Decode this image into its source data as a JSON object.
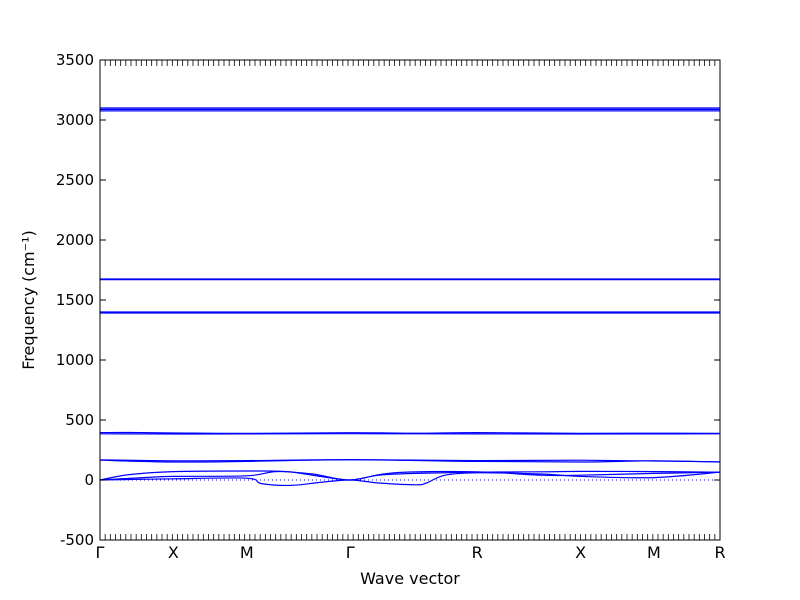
{
  "chart_data": {
    "type": "line",
    "title": "",
    "xlabel": "Wave vector",
    "ylabel": "Frequency (cm⁻¹)",
    "ylim": [
      -500,
      3500
    ],
    "yticks": [
      -500,
      0,
      500,
      1000,
      1500,
      2000,
      2500,
      3000,
      3500
    ],
    "xlim": [
      0,
      8.45
    ],
    "x_ticks": [
      {
        "label": "Γ",
        "x": 0
      },
      {
        "label": "X",
        "x": 1
      },
      {
        "label": "M",
        "x": 2
      },
      {
        "label": "Γ",
        "x": 3.41
      },
      {
        "label": "R",
        "x": 5.14
      },
      {
        "label": "X",
        "x": 6.55
      },
      {
        "label": "M",
        "x": 7.55
      },
      {
        "label": "R",
        "x": 8.45
      }
    ],
    "zero_line": "dotted",
    "line_color": "#0000ff",
    "series": [
      {
        "values": [
          [
            0,
            3100
          ],
          [
            8.45,
            3100
          ]
        ]
      },
      {
        "values": [
          [
            0,
            3088
          ],
          [
            8.45,
            3088
          ]
        ]
      },
      {
        "values": [
          [
            0,
            3076
          ],
          [
            8.45,
            3076
          ]
        ]
      },
      {
        "values": [
          [
            0,
            1675
          ],
          [
            8.45,
            1675
          ]
        ]
      },
      {
        "values": [
          [
            0,
            1670
          ],
          [
            8.45,
            1670
          ]
        ]
      },
      {
        "values": [
          [
            0,
            1400
          ],
          [
            8.45,
            1400
          ]
        ]
      },
      {
        "values": [
          [
            0,
            1392
          ],
          [
            8.45,
            1392
          ]
        ]
      },
      {
        "values": [
          [
            0,
            395
          ],
          [
            0.4,
            396
          ],
          [
            1.0,
            392
          ],
          [
            2.0,
            388
          ],
          [
            3.41,
            394
          ],
          [
            4.3,
            390
          ],
          [
            5.14,
            395
          ],
          [
            6.55,
            388
          ],
          [
            7.55,
            390
          ],
          [
            8.45,
            388
          ]
        ]
      },
      {
        "values": [
          [
            0,
            385
          ],
          [
            1.0,
            383
          ],
          [
            2.0,
            384
          ],
          [
            3.41,
            386
          ],
          [
            5.14,
            384
          ],
          [
            6.55,
            383
          ],
          [
            7.55,
            384
          ],
          [
            8.45,
            385
          ]
        ]
      },
      {
        "values": [
          [
            0,
            168
          ],
          [
            1.0,
            160
          ],
          [
            2.0,
            162
          ],
          [
            3.41,
            170
          ],
          [
            5.14,
            162
          ],
          [
            6.55,
            165
          ],
          [
            7.55,
            158
          ],
          [
            8.45,
            152
          ]
        ]
      },
      {
        "values": [
          [
            0,
            165
          ],
          [
            1.0,
            150
          ],
          [
            2.0,
            155
          ],
          [
            3.41,
            168
          ],
          [
            5.14,
            155
          ],
          [
            6.55,
            150
          ],
          [
            7.55,
            160
          ],
          [
            8.45,
            150
          ]
        ]
      },
      {
        "values": [
          [
            0,
            0
          ],
          [
            0.4,
            45
          ],
          [
            1.0,
            70
          ],
          [
            2.0,
            75
          ],
          [
            2.55,
            70
          ],
          [
            3.0,
            30
          ],
          [
            3.41,
            0
          ],
          [
            3.8,
            40
          ],
          [
            4.3,
            55
          ],
          [
            5.14,
            65
          ],
          [
            6.0,
            68
          ],
          [
            6.55,
            72
          ],
          [
            7.55,
            70
          ],
          [
            8.45,
            65
          ]
        ]
      },
      {
        "values": [
          [
            0,
            0
          ],
          [
            0.6,
            20
          ],
          [
            1.0,
            30
          ],
          [
            2.0,
            35
          ],
          [
            2.4,
            70
          ],
          [
            2.9,
            50
          ],
          [
            3.41,
            0
          ],
          [
            4.0,
            60
          ],
          [
            5.14,
            68
          ],
          [
            6.0,
            40
          ],
          [
            6.55,
            40
          ],
          [
            7.55,
            55
          ],
          [
            8.45,
            65
          ]
        ]
      },
      {
        "values": [
          [
            0,
            0
          ],
          [
            1.0,
            10
          ],
          [
            2.0,
            15
          ],
          [
            2.2,
            -30
          ],
          [
            2.6,
            -45
          ],
          [
            3.0,
            -20
          ],
          [
            3.41,
            0
          ],
          [
            3.8,
            -25
          ],
          [
            4.3,
            -40
          ],
          [
            4.45,
            -25
          ],
          [
            4.7,
            40
          ],
          [
            5.14,
            60
          ],
          [
            6.0,
            50
          ],
          [
            6.55,
            30
          ],
          [
            7.55,
            20
          ],
          [
            8.45,
            65
          ]
        ]
      }
    ]
  }
}
